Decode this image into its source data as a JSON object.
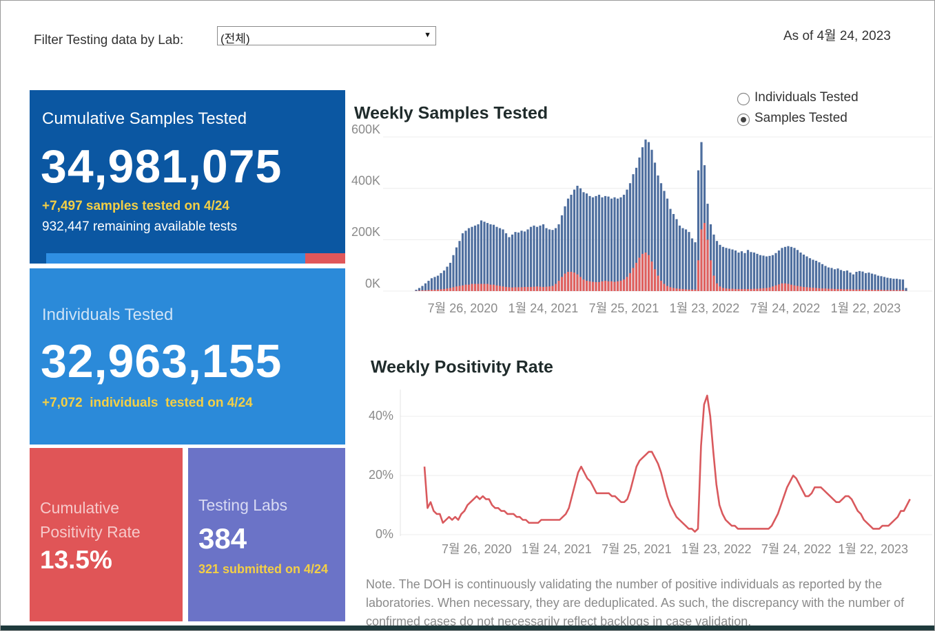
{
  "header": {
    "filter_label": "Filter Testing data by Lab:",
    "filter_value": "(전체)",
    "as_of": "As of 4월 24, 2023"
  },
  "cards": {
    "samples": {
      "title": "Cumulative Samples Tested",
      "value": "34,981,075",
      "delta": "+7,497 samples tested on 4/24",
      "remaining": "932,447 remaining available tests"
    },
    "individuals": {
      "title": "Individuals Tested",
      "value": "32,963,155",
      "delta": "+7,072  individuals  tested on 4/24"
    },
    "positivity": {
      "title": "Cumulative Positivity Rate",
      "value": "13.5%"
    },
    "labs": {
      "title": "Testing Labs",
      "value": "384",
      "submitted": "321 submitted on 4/24"
    }
  },
  "toggle": {
    "options": [
      "Individuals Tested",
      "Samples Tested"
    ],
    "selected": 1
  },
  "note": "Note. The DOH is continuously validating the number of positive individuals as reported by the laboratories. When necessary, they are deduplicated. As such, the discrepancy with the number of confirmed cases do not necessarily reflect backlogs in case validation.",
  "chart_data": [
    {
      "type": "bar",
      "title": "Weekly Samples Tested",
      "categories": [
        null,
        null,
        null,
        null,
        null,
        null,
        null,
        null,
        null,
        null,
        null,
        null,
        null,
        null,
        null,
        "7월 26, 2020",
        null,
        null,
        null,
        null,
        null,
        null,
        null,
        null,
        null,
        null,
        null,
        null,
        null,
        null,
        null,
        null,
        null,
        null,
        null,
        null,
        null,
        null,
        null,
        null,
        null,
        "1월 24, 2021",
        null,
        null,
        null,
        null,
        null,
        null,
        null,
        null,
        null,
        null,
        null,
        null,
        null,
        null,
        null,
        null,
        null,
        null,
        null,
        null,
        null,
        null,
        null,
        null,
        null,
        "7월 25, 2021",
        null,
        null,
        null,
        null,
        null,
        null,
        null,
        null,
        null,
        null,
        null,
        null,
        null,
        null,
        null,
        null,
        null,
        null,
        null,
        null,
        null,
        null,
        null,
        null,
        null,
        "1월 23, 2022",
        null,
        null,
        null,
        null,
        null,
        null,
        null,
        null,
        null,
        null,
        null,
        null,
        null,
        null,
        null,
        null,
        null,
        null,
        null,
        null,
        null,
        null,
        null,
        null,
        null,
        "7월 24, 2022",
        null,
        null,
        null,
        null,
        null,
        null,
        null,
        null,
        null,
        null,
        null,
        null,
        null,
        null,
        null,
        null,
        null,
        null,
        null,
        null,
        null,
        null,
        null,
        null,
        null,
        "1월 22, 2023",
        null,
        null,
        null,
        null,
        null,
        null,
        null,
        null,
        null,
        null,
        null,
        null,
        null
      ],
      "series": [
        {
          "color": "#4e6e9e",
          "values": [
            5000,
            12000,
            20000,
            30000,
            40000,
            50000,
            55000,
            60000,
            70000,
            80000,
            95000,
            110000,
            140000,
            170000,
            195000,
            225000,
            235000,
            245000,
            250000,
            255000,
            260000,
            275000,
            270000,
            265000,
            260000,
            258000,
            250000,
            245000,
            240000,
            225000,
            210000,
            220000,
            230000,
            228000,
            235000,
            232000,
            240000,
            250000,
            255000,
            250000,
            255000,
            260000,
            245000,
            240000,
            238000,
            245000,
            260000,
            295000,
            330000,
            360000,
            375000,
            395000,
            410000,
            400000,
            385000,
            380000,
            370000,
            365000,
            370000,
            375000,
            365000,
            370000,
            368000,
            360000,
            365000,
            360000,
            365000,
            375000,
            395000,
            420000,
            455000,
            480000,
            520000,
            560000,
            590000,
            580000,
            550000,
            500000,
            450000,
            420000,
            390000,
            360000,
            320000,
            300000,
            280000,
            255000,
            245000,
            240000,
            230000,
            205000,
            190000,
            470000,
            580000,
            490000,
            340000,
            260000,
            220000,
            195000,
            180000,
            172000,
            168000,
            165000,
            162000,
            158000,
            150000,
            155000,
            148000,
            160000,
            152000,
            150000,
            145000,
            140000,
            138000,
            135000,
            137000,
            140000,
            148000,
            158000,
            168000,
            172000,
            175000,
            172000,
            168000,
            160000,
            150000,
            142000,
            135000,
            128000,
            122000,
            118000,
            112000,
            105000,
            98000,
            92000,
            90000,
            85000,
            88000,
            82000,
            78000,
            80000,
            72000,
            65000,
            75000,
            78000,
            76000,
            70000,
            72000,
            68000,
            65000,
            60000,
            58000,
            55000,
            52000,
            50000,
            48000,
            48000,
            46000,
            45000,
            12000
          ]
        },
        {
          "color": "#e0605e",
          "values": [
            1000,
            2000,
            3000,
            3000,
            4000,
            5000,
            5000,
            6000,
            7000,
            8000,
            10000,
            12000,
            15000,
            18000,
            20000,
            22000,
            25000,
            25000,
            28000,
            28000,
            28000,
            28000,
            28000,
            28000,
            25000,
            25000,
            22000,
            20000,
            18000,
            16000,
            15000,
            14000,
            15000,
            15000,
            15000,
            16000,
            16000,
            16000,
            17000,
            18000,
            17000,
            16000,
            17000,
            18000,
            20000,
            28000,
            40000,
            55000,
            68000,
            75000,
            75000,
            72000,
            65000,
            55000,
            45000,
            40000,
            38000,
            36000,
            35000,
            35000,
            38000,
            40000,
            38000,
            38000,
            36000,
            38000,
            40000,
            45000,
            55000,
            70000,
            90000,
            110000,
            130000,
            145000,
            150000,
            140000,
            115000,
            85000,
            60000,
            40000,
            28000,
            20000,
            15000,
            12000,
            10000,
            9000,
            8000,
            7000,
            6000,
            6000,
            6000,
            120000,
            240000,
            265000,
            200000,
            120000,
            60000,
            30000,
            18000,
            12000,
            10000,
            9000,
            9000,
            8000,
            8000,
            8000,
            8000,
            8000,
            8000,
            9000,
            9000,
            10000,
            11000,
            12000,
            14000,
            18000,
            22000,
            26000,
            30000,
            30000,
            28000,
            25000,
            22000,
            20000,
            18000,
            16000,
            15000,
            14000,
            13000,
            12000,
            11000,
            10000,
            10000,
            9000,
            9000,
            8000,
            8000,
            8000,
            7000,
            7000,
            7000,
            6000,
            6000,
            6000,
            6000,
            5000,
            5000,
            5000,
            5000,
            5000,
            5000,
            4000,
            4000,
            4000,
            4000,
            4000,
            4000,
            4000,
            1000
          ]
        }
      ],
      "ylim": [
        0,
        610000
      ],
      "yticks": [
        {
          "value": 0,
          "label": "0K"
        },
        {
          "value": 200000,
          "label": "200K"
        },
        {
          "value": 400000,
          "label": "400K"
        },
        {
          "value": 600000,
          "label": "600K"
        }
      ],
      "grid": true
    },
    {
      "type": "line",
      "title": "Weekly Positivity Rate",
      "categories": [
        null,
        null,
        null,
        null,
        null,
        null,
        null,
        null,
        null,
        null,
        null,
        null,
        null,
        null,
        null,
        null,
        null,
        "7월 26, 2020",
        null,
        null,
        null,
        null,
        null,
        null,
        null,
        null,
        null,
        null,
        null,
        null,
        null,
        null,
        null,
        null,
        null,
        null,
        null,
        null,
        null,
        null,
        null,
        null,
        null,
        "1월 24, 2021",
        null,
        null,
        null,
        null,
        null,
        null,
        null,
        null,
        null,
        null,
        null,
        null,
        null,
        null,
        null,
        null,
        null,
        null,
        null,
        null,
        null,
        null,
        null,
        null,
        null,
        "7월 25, 2021",
        null,
        null,
        null,
        null,
        null,
        null,
        null,
        null,
        null,
        null,
        null,
        null,
        null,
        null,
        null,
        null,
        null,
        null,
        null,
        null,
        null,
        null,
        null,
        null,
        null,
        "1월 23, 2022",
        null,
        null,
        null,
        null,
        null,
        null,
        null,
        null,
        null,
        null,
        null,
        null,
        null,
        null,
        null,
        null,
        null,
        null,
        null,
        null,
        null,
        null,
        null,
        null,
        null,
        "7월 24, 2022",
        null,
        null,
        null,
        null,
        null,
        null,
        null,
        null,
        null,
        null,
        null,
        null,
        null,
        null,
        null,
        null,
        null,
        null,
        null,
        null,
        null,
        null,
        null,
        null,
        "1월 22, 2023",
        null,
        null,
        null,
        null,
        null,
        null,
        null,
        null,
        null,
        null,
        null,
        null
      ],
      "series": [
        {
          "color": "#d9595d",
          "values": [
            23,
            9,
            11,
            8,
            7,
            7,
            4,
            5,
            6,
            5,
            6,
            5,
            7,
            8,
            10,
            11,
            12,
            13,
            12,
            13,
            12,
            12,
            10,
            9,
            9,
            8,
            8,
            7,
            7,
            7,
            6,
            6,
            5,
            5,
            4,
            4,
            4,
            4,
            5,
            5,
            5,
            5,
            5,
            5,
            5,
            6,
            7,
            9,
            13,
            17,
            21,
            23,
            21,
            19,
            18,
            16,
            14,
            14,
            14,
            14,
            14,
            13,
            13,
            12,
            11,
            11,
            12,
            15,
            19,
            23,
            25,
            26,
            27,
            28,
            28,
            26,
            24,
            21,
            17,
            13,
            10,
            8,
            6,
            5,
            4,
            3,
            2,
            2,
            1,
            2,
            30,
            44,
            47,
            40,
            28,
            17,
            10,
            7,
            5,
            4,
            3,
            3,
            2,
            2,
            2,
            2,
            2,
            2,
            2,
            2,
            2,
            2,
            2,
            3,
            5,
            7,
            10,
            13,
            16,
            18,
            20,
            19,
            17,
            15,
            13,
            13,
            14,
            16,
            16,
            16,
            15,
            14,
            13,
            12,
            11,
            11,
            12,
            13,
            13,
            12,
            10,
            8,
            7,
            5,
            4,
            3,
            2,
            2,
            2,
            3,
            3,
            3,
            4,
            5,
            6,
            8,
            8,
            10,
            12
          ]
        }
      ],
      "ylim": [
        0,
        49
      ],
      "yticks": [
        {
          "value": 0,
          "label": "0%"
        },
        {
          "value": 20,
          "label": "20%"
        },
        {
          "value": 40,
          "label": "40%"
        }
      ],
      "grid": true
    }
  ]
}
